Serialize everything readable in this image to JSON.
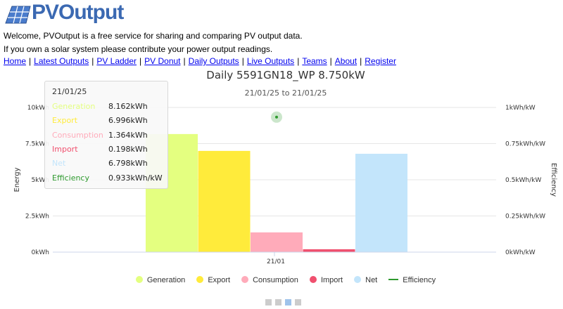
{
  "site": {
    "logo_text": "PVOutput"
  },
  "intro": {
    "line1": "Welcome, PVOutput is a free service for sharing and comparing PV output data.",
    "line2": "If you own a solar system please contribute your power output readings."
  },
  "nav": [
    "Home",
    "Latest Outputs",
    "PV Ladder",
    "PV Donut",
    "Daily Outputs",
    "Live Outputs",
    "Teams",
    "About",
    "Register"
  ],
  "colors": {
    "generation": "#e4ff80",
    "export": "#ffeb3b",
    "consumption": "#ffabba",
    "import": "#f0506e",
    "net": "#c3e5fb",
    "efficiency": "#2e9a2e",
    "logo": "#3b69b2"
  },
  "chart_data": {
    "type": "bar",
    "title": "Daily 5591GN18_WP 8.750kW",
    "subtitle": "21/01/25 to 21/01/25",
    "categories": [
      "21/01"
    ],
    "xlabel": "",
    "ylabel": "Energy",
    "y2label": "Efficiency",
    "ylim": [
      0,
      10
    ],
    "y2lim": [
      0,
      1
    ],
    "yticks": [
      "0kWh",
      "2.5kWh",
      "5kWh",
      "7.5kWh",
      "10kWh"
    ],
    "y2ticks": [
      "0kWh/kW",
      "0.25kWh/kW",
      "0.5kWh/kW",
      "0.75kWh/kW",
      "1kWh/kW"
    ],
    "grid": true,
    "legend": "bottom",
    "series": [
      {
        "key": "generation",
        "name": "Generation",
        "values": [
          8.162
        ]
      },
      {
        "key": "export",
        "name": "Export",
        "values": [
          6.996
        ]
      },
      {
        "key": "consumption",
        "name": "Consumption",
        "values": [
          1.364
        ]
      },
      {
        "key": "import",
        "name": "Import",
        "values": [
          0.198
        ]
      },
      {
        "key": "net",
        "name": "Net",
        "values": [
          6.798
        ]
      }
    ],
    "efficiency": {
      "name": "Efficiency",
      "values": [
        0.933
      ]
    }
  },
  "tooltip": {
    "date": "21/01/25",
    "rows": [
      {
        "key": "generation",
        "name": "Generation",
        "value": "8.162kWh"
      },
      {
        "key": "export",
        "name": "Export",
        "value": "6.996kWh"
      },
      {
        "key": "consumption",
        "name": "Consumption",
        "value": "1.364kWh"
      },
      {
        "key": "import",
        "name": "Import",
        "value": "0.198kWh"
      },
      {
        "key": "net",
        "name": "Net",
        "value": "6.798kWh"
      },
      {
        "key": "efficiency",
        "name": "Efficiency",
        "value": "0.933kWh/kW"
      }
    ]
  },
  "pager": {
    "pages": 4,
    "active": 2
  }
}
